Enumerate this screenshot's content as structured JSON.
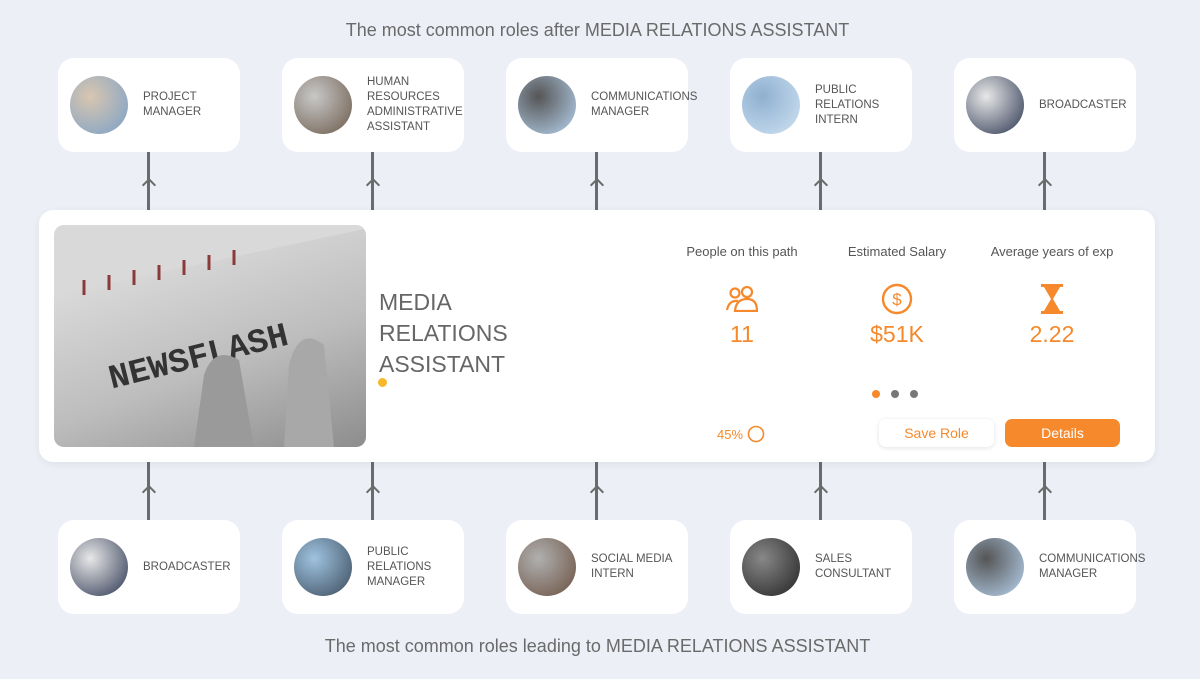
{
  "top_heading": "The most common roles after MEDIA RELATIONS ASSISTANT",
  "bottom_heading": "The most common roles leading to MEDIA RELATIONS ASSISTANT",
  "next_roles": [
    {
      "label": "Project Manager"
    },
    {
      "label": "Human Resources Administrative Assistant"
    },
    {
      "label": "Communications Manager"
    },
    {
      "label": "Public Relations Intern"
    },
    {
      "label": "Broadcaster"
    }
  ],
  "previous_roles": [
    {
      "label": "Broadcaster"
    },
    {
      "label": "Public Relations Manager"
    },
    {
      "label": "Social Media Intern"
    },
    {
      "label": "Sales Consultant"
    },
    {
      "label": "Communications Manager"
    }
  ],
  "current_role": {
    "title": "MEDIA RELATIONS ASSISTANT",
    "image_text": "NEWSFLASH",
    "stats": [
      {
        "label": "People on this path",
        "value": "11",
        "icon": "people-icon"
      },
      {
        "label": "Estimated Salary",
        "value": "$51K",
        "icon": "dollar-icon"
      },
      {
        "label": "Average years of exp",
        "value": "2.22",
        "icon": "hourglass-icon"
      }
    ],
    "match_percent": "45%",
    "carousel_active": 0,
    "save_label": "Save Role",
    "details_label": "Details"
  },
  "colors": {
    "accent": "#f5892b",
    "background": "#eceff6",
    "dot_inactive": "#777777"
  }
}
